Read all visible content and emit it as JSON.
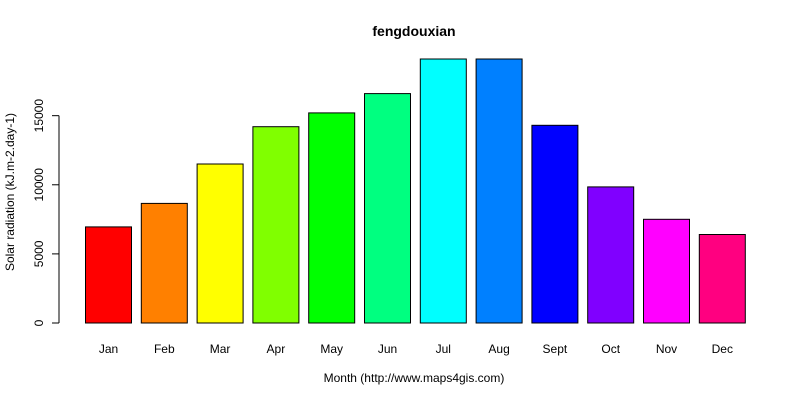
{
  "chart_data": {
    "type": "bar",
    "title": "fengdouxian",
    "xlabel": "Month (http://www.maps4gis.com)",
    "ylabel": "Solar radiation (kJ.m-2.day-1)",
    "categories": [
      "Jan",
      "Feb",
      "Mar",
      "Apr",
      "May",
      "Jun",
      "Jul",
      "Aug",
      "Sept",
      "Oct",
      "Nov",
      "Dec"
    ],
    "values": [
      6950,
      8650,
      11500,
      14200,
      15200,
      16600,
      19100,
      19100,
      14300,
      9850,
      7500,
      6400
    ],
    "colors": [
      "#FF0000",
      "#FF8000",
      "#FFFF00",
      "#80FF00",
      "#00FF00",
      "#00FF80",
      "#00FFFF",
      "#0080FF",
      "#0000FF",
      "#8000FF",
      "#FF00FF",
      "#FF0080"
    ],
    "yticks": [
      0,
      5000,
      10000,
      15000
    ],
    "ytick_labels": [
      "0",
      "5000",
      "10000",
      "15000"
    ],
    "ylim": [
      0,
      19100
    ],
    "grid": false,
    "legend": "none"
  }
}
